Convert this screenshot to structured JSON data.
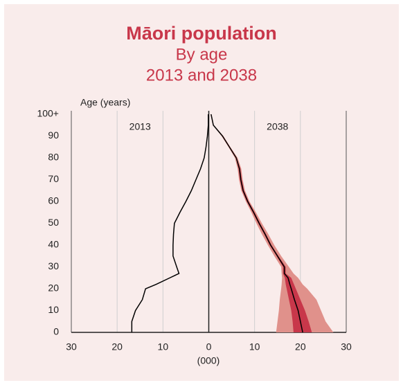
{
  "chart_data": {
    "type": "pyramid",
    "title": "Māori population",
    "subtitle": [
      "By age",
      "2013 and 2038"
    ],
    "ylabel": "Age (years)",
    "xlabel": "(000)",
    "xlim": [
      -30,
      30
    ],
    "xticks": [
      {
        "value": -30,
        "label": "30"
      },
      {
        "value": -20,
        "label": "20"
      },
      {
        "value": -10,
        "label": "10"
      },
      0,
      10,
      20,
      30
    ],
    "ylim": [
      0,
      100
    ],
    "yticks": [
      0,
      10,
      20,
      30,
      40,
      50,
      60,
      70,
      80,
      90,
      {
        "value": 100,
        "label": "100+"
      }
    ],
    "grid": true,
    "ages": [
      0,
      5,
      10,
      15,
      20,
      22,
      25,
      27,
      30,
      35,
      40,
      45,
      50,
      55,
      60,
      65,
      70,
      75,
      80,
      85,
      90,
      95,
      100
    ],
    "bands": [
      {
        "color": "#e0918b",
        "lower": [
          14.7,
          15,
          15.3,
          15.5,
          15.8,
          15.9,
          16,
          15.9,
          15.8,
          14.3,
          12.9,
          11.6,
          10.4,
          9.3,
          8.1,
          7.1,
          6.6,
          6.3,
          5.7,
          4.3,
          2.8,
          0.9,
          0.4
        ],
        "upper": [
          27.2,
          25.5,
          24.5,
          23.5,
          21.5,
          20.5,
          19.5,
          18.5,
          17.5,
          15.8,
          14.3,
          13,
          11.6,
          10.3,
          8.9,
          7.9,
          7.4,
          7.1,
          6.3,
          4.7,
          3.2,
          1.1,
          0.6
        ]
      },
      {
        "color": "#c8374a",
        "lower": [
          18.5,
          18.3,
          18,
          17.5,
          17,
          16.8,
          16.6,
          16.2,
          16.2,
          14.8,
          13.3,
          12.1,
          10.8,
          9.6,
          8.3,
          7.3,
          6.8,
          6.5,
          5.9,
          4.4,
          2.9,
          0.95,
          0.45
        ],
        "upper": [
          22.5,
          21.8,
          21,
          20,
          19,
          18.6,
          18,
          16.8,
          16.8,
          15.2,
          13.7,
          12.5,
          11.2,
          10,
          8.7,
          7.7,
          7.2,
          6.9,
          6.1,
          4.6,
          3.1,
          1.05,
          0.55
        ]
      }
    ],
    "series": [
      {
        "name": "2013",
        "side": "left",
        "color": "#000000",
        "values": [
          16.8,
          16.8,
          16,
          14.5,
          13.8,
          11.5,
          8.5,
          6.5,
          7,
          7.8,
          7.8,
          7.7,
          7.5,
          6.3,
          5,
          3.8,
          2.8,
          1.8,
          1,
          0.6,
          0.3,
          0.1,
          0.1
        ]
      },
      {
        "name": "2038",
        "side": "right",
        "color": "#000000",
        "values": [
          20.5,
          20,
          19.5,
          18.7,
          18,
          17.7,
          17.3,
          16.5,
          16.5,
          15,
          13.5,
          12.3,
          11,
          9.8,
          8.5,
          7.5,
          7,
          6.7,
          6,
          4.5,
          3,
          1,
          0.5
        ]
      }
    ]
  }
}
